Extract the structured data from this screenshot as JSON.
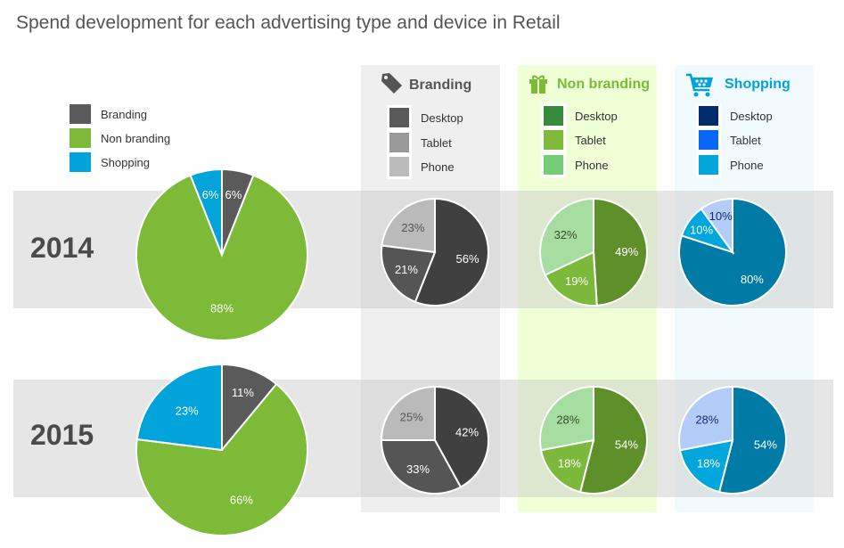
{
  "chart_data": {
    "type": "pie",
    "title": "Spend development for each advertising type and device in Retail",
    "years": [
      "2014",
      "2015"
    ],
    "overall": {
      "legend": [
        "Branding",
        "Non branding",
        "Shopping"
      ],
      "colors": [
        "#5a5a5a",
        "#7cba37",
        "#00a3da"
      ],
      "values": {
        "2014": [
          6,
          88,
          6
        ],
        "2015": [
          11,
          66,
          23
        ]
      }
    },
    "segments": [
      {
        "name": "Branding",
        "icon": "tag-icon",
        "header_color": "#555555",
        "legend": [
          "Desktop",
          "Tablet",
          "Phone"
        ],
        "legend_colors": [
          "#595959",
          "#999999",
          "#bbbbbb"
        ],
        "pie_colors": [
          "#404040",
          "#555555",
          "#bababa"
        ],
        "label_colors": [
          "#ffffff",
          "#ffffff",
          "#555555"
        ],
        "values": {
          "2014": [
            56,
            21,
            23
          ],
          "2015": [
            42,
            33,
            25
          ]
        }
      },
      {
        "name": "Non branding",
        "icon": "gift-icon",
        "header_color": "#7cba37",
        "legend": [
          "Desktop",
          "Tablet",
          "Phone"
        ],
        "legend_colors": [
          "#358b3a",
          "#7fba3a",
          "#74cd78"
        ],
        "pie_colors": [
          "#5f8f29",
          "#7cb83a",
          "#a6dea2"
        ],
        "label_colors": [
          "#ffffff",
          "#ffffff",
          "#3a4a2a"
        ],
        "values": {
          "2014": [
            49,
            19,
            32
          ],
          "2015": [
            54,
            18,
            28
          ]
        }
      },
      {
        "name": "Shopping",
        "icon": "shopping-cart-icon",
        "header_color": "#00a3da",
        "legend": [
          "Desktop",
          "Tablet",
          "Phone"
        ],
        "legend_colors": [
          "#002a6e",
          "#0a66f5",
          "#00a5da"
        ],
        "pie_colors": [
          "#007ba6",
          "#00a6dc",
          "#b3cdf8"
        ],
        "label_colors": [
          "#ffffff",
          "#ffffff",
          "#1a2a6c"
        ],
        "values": {
          "2014": [
            80,
            10,
            10
          ],
          "2015": [
            54,
            18,
            28
          ]
        }
      }
    ]
  }
}
